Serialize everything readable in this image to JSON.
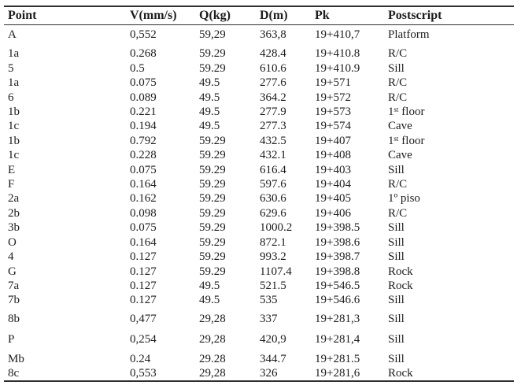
{
  "table": {
    "columns": [
      {
        "key": "point",
        "label": "Point"
      },
      {
        "key": "v",
        "label": "V(mm/s)"
      },
      {
        "key": "q",
        "label": "Q(kg)"
      },
      {
        "key": "d",
        "label": "D(m)"
      },
      {
        "key": "pk",
        "label": "Pk"
      },
      {
        "key": "postscript",
        "label": "Postscript"
      }
    ],
    "rows": [
      [
        "A",
        "0,552",
        "59,29",
        "363,8",
        "19+410,7",
        "Platform"
      ],
      [
        "1a",
        "0.268",
        "59.29",
        "428.4",
        "19+410.8",
        "R/C"
      ],
      [
        "5",
        "0.5",
        "59.29",
        "610.6",
        "19+410.9",
        "Sill"
      ],
      [
        "1a",
        "0.075",
        "49.5",
        "277.6",
        "19+571",
        "R/C"
      ],
      [
        "6",
        "0.089",
        "49.5",
        "364.2",
        "19+572",
        "R/C"
      ],
      [
        "1b",
        "0.221",
        "49.5",
        "277.9",
        "19+573",
        "1ˢᵗ floor"
      ],
      [
        "1c",
        "0.194",
        "49.5",
        "277.3",
        "19+574",
        "Cave"
      ],
      [
        "1b",
        "0.792",
        "59.29",
        "432.5",
        "19+407",
        "1ˢᵗ floor"
      ],
      [
        "1c",
        "0.228",
        "59.29",
        "432.1",
        "19+408",
        "Cave"
      ],
      [
        "E",
        "0.075",
        "59.29",
        "616.4",
        "19+403",
        "Sill"
      ],
      [
        "F",
        "0.164",
        "59.29",
        "597.6",
        "19+404",
        "R/C"
      ],
      [
        "2a",
        "0.162",
        "59.29",
        "630.6",
        "19+405",
        "1º piso"
      ],
      [
        "2b",
        "0.098",
        "59.29",
        "629.6",
        "19+406",
        "R/C"
      ],
      [
        "3b",
        "0.075",
        "59.29",
        "1000.2",
        "19+398.5",
        "Sill"
      ],
      [
        "O",
        "0.164",
        "59.29",
        "872.1",
        "19+398.6",
        "Sill"
      ],
      [
        "4",
        "0.127",
        "59.29",
        "993.2",
        "19+398.7",
        "Sill"
      ],
      [
        "G",
        "0.127",
        "59.29",
        "1107.4",
        "19+398.8",
        "Rock"
      ],
      [
        "7a",
        "0.127",
        "49.5",
        "521.5",
        "19+546.5",
        "Rock"
      ],
      [
        "7b",
        "0.127",
        "49.5",
        "535",
        "19+546.6",
        "Sill"
      ],
      [
        "8b",
        "0,477",
        "29,28",
        "337",
        "19+281,3",
        "Sill"
      ],
      [
        "P",
        "0,254",
        "29,28",
        "420,9",
        "19+281,4",
        "Sill"
      ],
      [
        "Mb",
        "0.24",
        "29.28",
        "344.7",
        "19+281.5",
        "Sill"
      ],
      [
        "8c",
        "0,553",
        "29,28",
        "326",
        "19+281,6",
        "Rock"
      ]
    ]
  },
  "colors": {
    "text": "#1c1c1c",
    "rule": "#2e2e2e",
    "background": "#ffffff"
  }
}
